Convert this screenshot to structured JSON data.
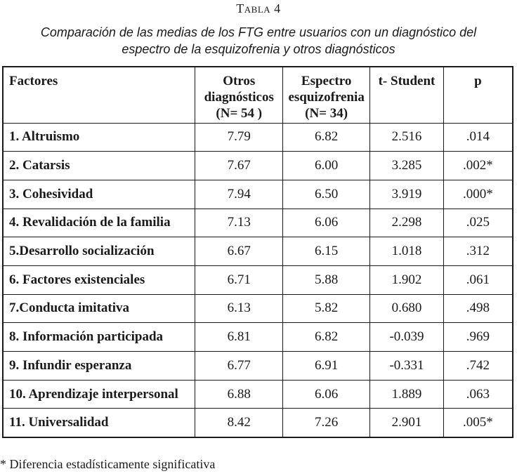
{
  "table_label": "Tabla 4",
  "caption_line1": "Comparación de las medias de los FTG entre usuarios con un diagnóstico del",
  "caption_line2": "espectro de la esquizofrenia y otros diagnósticos",
  "headers": {
    "factores": "Factores",
    "otros_l1": "Otros",
    "otros_l2": "diagnósticos",
    "otros_l3": "(N= 54 )",
    "espectro_l1": "Espectro",
    "espectro_l2": "esquizofrenia",
    "espectro_l3": "(N= 34)",
    "tstudent": "t- Student",
    "p": "p"
  },
  "rows": [
    {
      "factor": "1. Altruismo",
      "otros": "7.79",
      "espectro": "6.82",
      "t": "2.516",
      "p": ".014"
    },
    {
      "factor": "2. Catarsis",
      "otros": "7.67",
      "espectro": "6.00",
      "t": "3.285",
      "p": ".002*"
    },
    {
      "factor": "3. Cohesividad",
      "otros": "7.94",
      "espectro": "6.50",
      "t": "3.919",
      "p": ".000*"
    },
    {
      "factor": "4. Revalidación de la familia",
      "otros": "7.13",
      "espectro": "6.06",
      "t": "2.298",
      "p": ".025"
    },
    {
      "factor": "5.Desarrollo socialización",
      "otros": "6.67",
      "espectro": "6.15",
      "t": "1.018",
      "p": ".312"
    },
    {
      "factor": "6. Factores existenciales",
      "otros": "6.71",
      "espectro": "5.88",
      "t": "1.902",
      "p": ".061"
    },
    {
      "factor": "7.Conducta imitativa",
      "otros": "6.13",
      "espectro": "5.82",
      "t": "0.680",
      "p": ".498"
    },
    {
      "factor": "8. Información participada",
      "otros": "6.81",
      "espectro": "6.82",
      "t": "-0.039",
      "p": ".969"
    },
    {
      "factor": "9. Infundir esperanza",
      "otros": "6.77",
      "espectro": "6.91",
      "t": "-0.331",
      "p": ".742"
    },
    {
      "factor": "10. Aprendizaje interpersonal",
      "otros": "6.88",
      "espectro": "6.06",
      "t": "1.889",
      "p": ".063"
    },
    {
      "factor": "11. Universalidad",
      "otros": "8.42",
      "espectro": "7.26",
      "t": "2.901",
      "p": ".005*"
    }
  ],
  "footnote": "* Diferencia estadísticamente significativa"
}
